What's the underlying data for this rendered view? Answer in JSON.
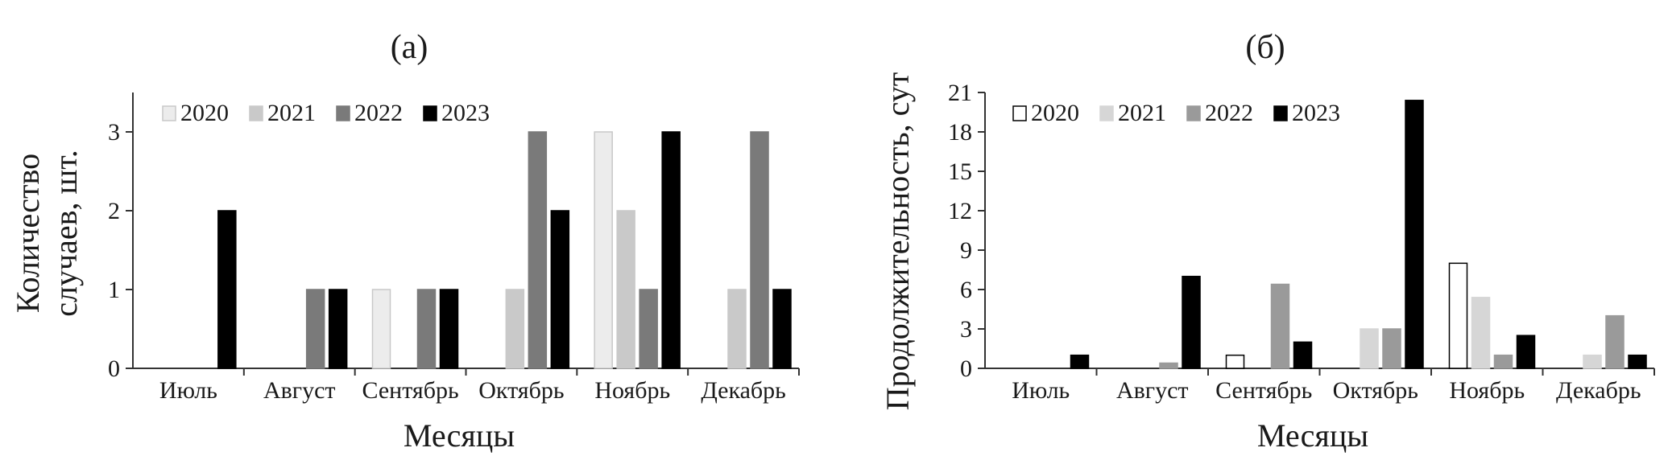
{
  "chart_data": [
    {
      "type": "bar",
      "title": "(а)",
      "xlabel": "Месяцы",
      "ylabel_lines": [
        "Количество",
        "случаев, шт."
      ],
      "ylim": [
        0,
        3.5
      ],
      "yticks": [
        0,
        1,
        2,
        3
      ],
      "categories": [
        "Июль",
        "Август",
        "Сентябрь",
        "Октябрь",
        "Ноябрь",
        "Декабрь"
      ],
      "series": [
        {
          "name": "2020",
          "color": "#ececec",
          "stroke": "#c8c8c8",
          "values": [
            0,
            0,
            1,
            0,
            3,
            0
          ]
        },
        {
          "name": "2021",
          "color": "#c9c9c9",
          "stroke": "#c9c9c9",
          "values": [
            0,
            0,
            0,
            1,
            2,
            1
          ]
        },
        {
          "name": "2022",
          "color": "#7a7a7a",
          "stroke": "#7a7a7a",
          "values": [
            0,
            1,
            1,
            3,
            1,
            3
          ]
        },
        {
          "name": "2023",
          "color": "#000000",
          "stroke": "#000000",
          "values": [
            2,
            1,
            1,
            2,
            3,
            1
          ]
        }
      ],
      "legend_position": "top-left",
      "grid": false
    },
    {
      "type": "bar",
      "title": "(б)",
      "xlabel": "Месяцы",
      "ylabel_lines": [
        "Продолжительность, сут"
      ],
      "ylim": [
        0,
        21
      ],
      "yticks": [
        0,
        3,
        6,
        9,
        12,
        15,
        18,
        21
      ],
      "categories": [
        "Июль",
        "Август",
        "Сентябрь",
        "Октябрь",
        "Ноябрь",
        "Декабрь"
      ],
      "series": [
        {
          "name": "2020",
          "color": "#ffffff",
          "stroke": "#000000",
          "values": [
            0,
            0,
            1,
            0,
            8,
            0
          ]
        },
        {
          "name": "2021",
          "color": "#d6d6d6",
          "stroke": "#d6d6d6",
          "values": [
            0,
            0,
            0,
            3,
            5.4,
            1
          ]
        },
        {
          "name": "2022",
          "color": "#9a9a9a",
          "stroke": "#9a9a9a",
          "values": [
            0,
            0.4,
            6.4,
            3,
            1,
            4
          ]
        },
        {
          "name": "2023",
          "color": "#000000",
          "stroke": "#000000",
          "values": [
            1,
            7,
            2,
            20.4,
            2.5,
            1
          ]
        }
      ],
      "legend_position": "top-left",
      "grid": false
    }
  ]
}
